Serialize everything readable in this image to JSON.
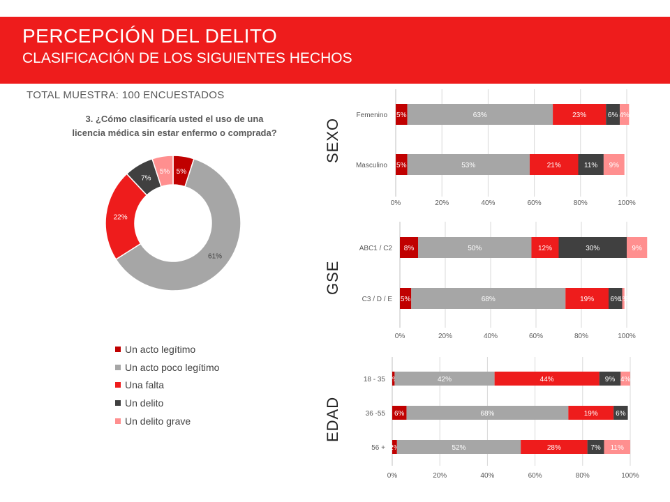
{
  "header": {
    "title": "PERCEPCIÓN DEL DELITO",
    "subtitle": "CLASIFICACIÓN DE LOS SIGUIENTES HECHOS"
  },
  "sample_label": "TOTAL MUESTRA: 100 ENCUESTADOS",
  "question": {
    "line1": "3. ¿Cómo clasificaría usted el uso de una",
    "line2": "licencia médica sin estar enfermo o comprada?"
  },
  "sections": {
    "sexo": "SEXO",
    "gse": "GSE",
    "edad": "EDAD"
  },
  "colors": {
    "header": "#ee1c1c",
    "acto_legitimo": "#c00000",
    "acto_poco_legitimo": "#a6a6a6",
    "una_falta": "#ee1c1c",
    "un_delito": "#404040",
    "un_delito_grave": "#ff8f8f"
  },
  "legend": [
    {
      "label": "Un acto legítimo",
      "color": "#c00000"
    },
    {
      "label": "Un acto poco legítimo",
      "color": "#a6a6a6"
    },
    {
      "label": "Una falta",
      "color": "#ee1c1c"
    },
    {
      "label": "Un delito",
      "color": "#404040"
    },
    {
      "label": "Un delito grave",
      "color": "#ff8f8f"
    }
  ],
  "chart_data": [
    {
      "id": "total",
      "type": "pie",
      "donut": true,
      "categories": [
        "Un acto legítimo",
        "Un acto poco legítimo",
        "Una falta",
        "Un delito",
        "Un delito grave"
      ],
      "values": [
        5,
        61,
        22,
        7,
        5
      ],
      "labels": [
        "5%",
        "61%",
        "22%",
        "7%",
        "5%"
      ]
    },
    {
      "id": "sexo",
      "type": "bar",
      "orientation": "horizontal",
      "stacked": "percent",
      "categories": [
        "Femenino",
        "Masculino"
      ],
      "series": [
        {
          "name": "Un acto legítimo",
          "values": [
            5,
            5
          ],
          "labels": [
            "5%",
            "5%"
          ]
        },
        {
          "name": "Un acto poco legítimo",
          "values": [
            63,
            53
          ],
          "labels": [
            "63%",
            "53%"
          ]
        },
        {
          "name": "Una falta",
          "values": [
            23,
            21
          ],
          "labels": [
            "23%",
            "21%"
          ]
        },
        {
          "name": "Un delito",
          "values": [
            6,
            11
          ],
          "labels": [
            "6%",
            "11%"
          ]
        },
        {
          "name": "Un delito grave",
          "values": [
            4,
            9
          ],
          "labels": [
            "4%",
            "9%"
          ]
        }
      ],
      "xticks": [
        "0%",
        "20%",
        "40%",
        "60%",
        "80%",
        "100%"
      ],
      "xlim": [
        0,
        100
      ]
    },
    {
      "id": "gse",
      "type": "bar",
      "orientation": "horizontal",
      "stacked": "percent",
      "categories": [
        "ABC1 / C2",
        "C3 / D / E"
      ],
      "series": [
        {
          "name": "Un acto legítimo",
          "values": [
            8,
            5
          ],
          "labels": [
            "8%",
            "5%"
          ]
        },
        {
          "name": "Un acto poco legítimo",
          "values": [
            50,
            68
          ],
          "labels": [
            "50%",
            "68%"
          ]
        },
        {
          "name": "Una falta",
          "values": [
            12,
            19
          ],
          "labels": [
            "12%",
            "19%"
          ]
        },
        {
          "name": "Un delito",
          "values": [
            30,
            6
          ],
          "labels": [
            "30%",
            "6%"
          ]
        },
        {
          "name": "Un delito grave",
          "values": [
            9,
            1
          ],
          "labels": [
            "9%",
            "1%"
          ]
        }
      ],
      "xticks": [
        "0%",
        "20%",
        "40%",
        "60%",
        "80%",
        "100%"
      ],
      "xlim": [
        0,
        100
      ]
    },
    {
      "id": "edad",
      "type": "bar",
      "orientation": "horizontal",
      "stacked": "percent",
      "categories": [
        "18 - 35",
        "36 -55",
        "56 +"
      ],
      "series": [
        {
          "name": "Un acto legítimo",
          "values": [
            1,
            6,
            2
          ],
          "labels": [
            "1%",
            "6%",
            "2%"
          ]
        },
        {
          "name": "Un acto poco legítimo",
          "values": [
            42,
            68,
            52
          ],
          "labels": [
            "42%",
            "68%",
            "52%"
          ]
        },
        {
          "name": "Una falta",
          "values": [
            44,
            19,
            28
          ],
          "labels": [
            "44%",
            "19%",
            "28%"
          ]
        },
        {
          "name": "Un delito",
          "values": [
            9,
            6,
            7
          ],
          "labels": [
            "9%",
            "6%",
            "7%"
          ]
        },
        {
          "name": "Un delito grave",
          "values": [
            4,
            0,
            11
          ],
          "labels": [
            "4%",
            "0%",
            "11%"
          ]
        }
      ],
      "xticks": [
        "0%",
        "20%",
        "40%",
        "60%",
        "80%",
        "100%"
      ],
      "xlim": [
        0,
        100
      ]
    }
  ]
}
